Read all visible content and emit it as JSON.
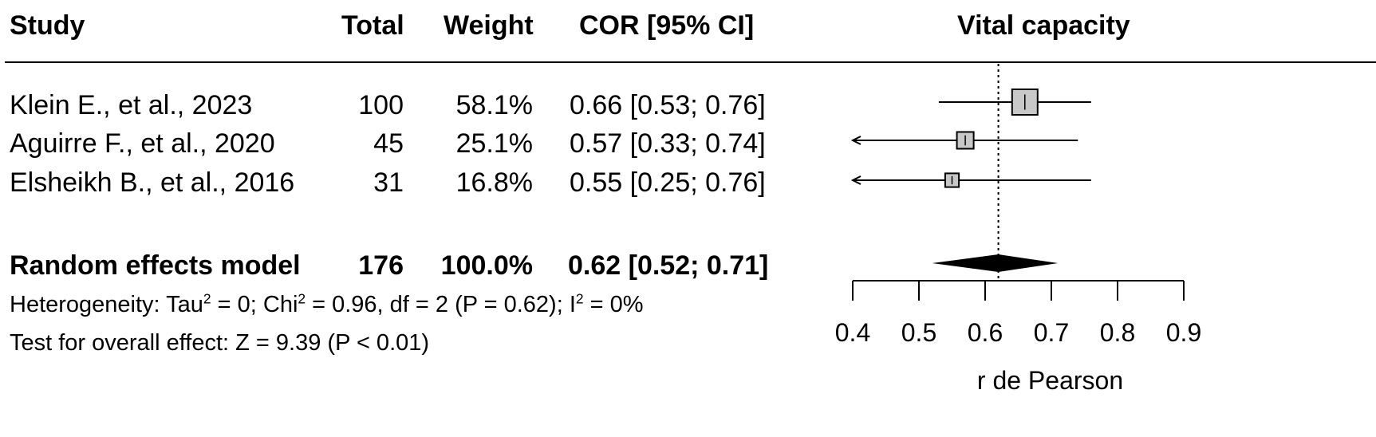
{
  "headers": {
    "study": "Study",
    "total": "Total",
    "weight": "Weight",
    "cor": "COR [95% CI]",
    "plot_title": "Vital capacity"
  },
  "studies": [
    {
      "study": "Klein E., et al., 2023",
      "total": "100",
      "weight": "58.1%",
      "cor": "0.66 [0.53; 0.76]"
    },
    {
      "study": "Aguirre F., et al., 2020",
      "total": "45",
      "weight": "25.1%",
      "cor": "0.57 [0.33; 0.74]"
    },
    {
      "study": "Elsheikh B., et al., 2016",
      "total": "31",
      "weight": "16.8%",
      "cor": "0.55 [0.25; 0.76]"
    }
  ],
  "summary": {
    "label": "Random effects model",
    "total": "176",
    "weight": "100.0%",
    "cor": "0.62 [0.52; 0.71]"
  },
  "heterogeneity": {
    "prefix": "Heterogeneity: Tau",
    "tau_exp": "2",
    "after_tau": " = 0; Chi",
    "chi_exp": "2",
    "after_chi": " = 0.96, df = 2 (P = 0.62); I",
    "i_exp": "2",
    "after_i": " = 0%"
  },
  "overall_test": "Test for overall effect: Z = 9.39 (P < 0.01)",
  "chart_data": {
    "type": "forest",
    "title": "Vital capacity",
    "xlabel": "r de Pearson",
    "xlim": [
      0.4,
      0.9
    ],
    "ticks": [
      0.4,
      0.5,
      0.6,
      0.7,
      0.8,
      0.9
    ],
    "tick_labels": [
      "0.4",
      "0.5",
      "0.6",
      "0.7",
      "0.8",
      "0.9"
    ],
    "reference_line": 0.62,
    "studies": [
      {
        "name": "Klein E., et al., 2023",
        "estimate": 0.66,
        "lower": 0.53,
        "upper": 0.76,
        "weight": 58.1
      },
      {
        "name": "Aguirre F., et al., 2020",
        "estimate": 0.57,
        "lower": 0.33,
        "upper": 0.74,
        "weight": 25.1
      },
      {
        "name": "Elsheikh B., et al., 2016",
        "estimate": 0.55,
        "lower": 0.25,
        "upper": 0.76,
        "weight": 16.8
      }
    ],
    "summary": {
      "estimate": 0.62,
      "lower": 0.52,
      "upper": 0.71
    },
    "colors": {
      "box_fill": "#c8c8c8",
      "line": "#000000",
      "diamond": "#000000"
    }
  }
}
